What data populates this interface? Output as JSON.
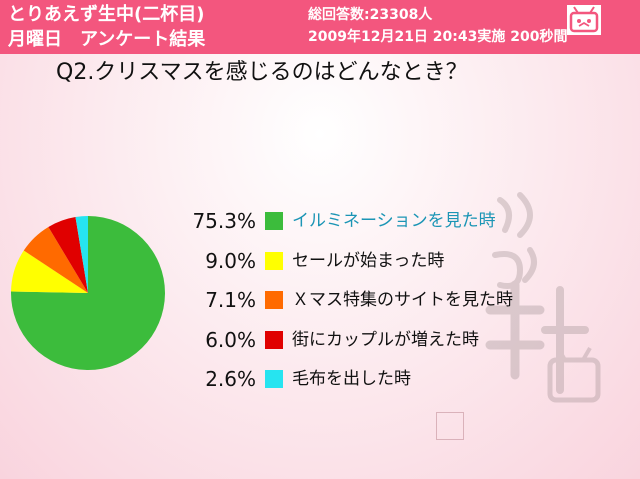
{
  "header": {
    "show_title_line1": "とりあえず生中(二杯目)",
    "show_title_line2": "月曜日　アンケート結果",
    "respondents": "総回答数:23308人",
    "datetime": "2009年12月21日 20:43実施 200秒間",
    "brand_color": "#f3567e"
  },
  "question": "Q2.クリスマスを感じるのはどんなとき？",
  "watermark": {
    "icon": "tv-mascot-icon"
  },
  "chart_data": {
    "type": "pie",
    "title": "",
    "start": "top, clockwise",
    "series": [
      {
        "label": "イルミネーションを見た時",
        "value": 75.3,
        "display": "75.3%",
        "color": "#3cbc3c"
      },
      {
        "label": "セールが始まった時",
        "value": 9.0,
        "display": "9.0%",
        "color": "#ffff00"
      },
      {
        "label": "Ｘマス特集のサイトを見た時",
        "value": 7.1,
        "display": "7.1%",
        "color": "#ff6a00"
      },
      {
        "label": "街にカップルが増えた時",
        "value": 6.0,
        "display": "6.0%",
        "color": "#e00000"
      },
      {
        "label": "毛布を出した時",
        "value": 2.6,
        "display": "2.6%",
        "color": "#26e4f0"
      }
    ]
  }
}
